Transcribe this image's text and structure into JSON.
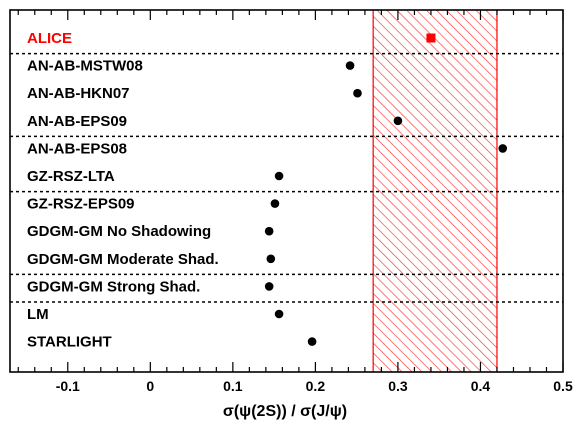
{
  "chart_data": {
    "type": "scatter",
    "xlabel": "σ(ψ(2S)) / σ(J/ψ)",
    "xlim": [
      -0.17,
      0.5
    ],
    "xticks": [
      "-0.1",
      "0",
      "0.1",
      "0.2",
      "0.3",
      "0.4",
      "0.5"
    ],
    "xtick_values": [
      -0.1,
      0,
      0.1,
      0.2,
      0.3,
      0.4,
      0.5
    ],
    "band": {
      "x0": 0.27,
      "x1": 0.42,
      "color": "#ff0000"
    },
    "group_separators_after": [
      0,
      3,
      5,
      8,
      9
    ],
    "points": [
      {
        "label": "ALICE",
        "x": 0.34,
        "marker": "square",
        "color": "#ff0000"
      },
      {
        "label": "AN-AB-MSTW08",
        "x": 0.242,
        "marker": "circle",
        "color": "#000000"
      },
      {
        "label": "AN-AB-HKN07",
        "x": 0.251,
        "marker": "circle",
        "color": "#000000"
      },
      {
        "label": "AN-AB-EPS09",
        "x": 0.3,
        "marker": "circle",
        "color": "#000000"
      },
      {
        "label": "AN-AB-EPS08",
        "x": 0.427,
        "marker": "circle",
        "color": "#000000"
      },
      {
        "label": "GZ-RSZ-LTA",
        "x": 0.156,
        "marker": "circle",
        "color": "#000000"
      },
      {
        "label": "GZ-RSZ-EPS09",
        "x": 0.151,
        "marker": "circle",
        "color": "#000000"
      },
      {
        "label": "GDGM-GM No Shadowing",
        "x": 0.144,
        "marker": "circle",
        "color": "#000000"
      },
      {
        "label": "GDGM-GM Moderate Shad.",
        "x": 0.146,
        "marker": "circle",
        "color": "#000000"
      },
      {
        "label": "GDGM-GM Strong Shad.",
        "x": 0.144,
        "marker": "circle",
        "color": "#000000"
      },
      {
        "label": "LM",
        "x": 0.156,
        "marker": "circle",
        "color": "#000000"
      },
      {
        "label": "STARLIGHT",
        "x": 0.196,
        "marker": "circle",
        "color": "#000000"
      }
    ]
  }
}
